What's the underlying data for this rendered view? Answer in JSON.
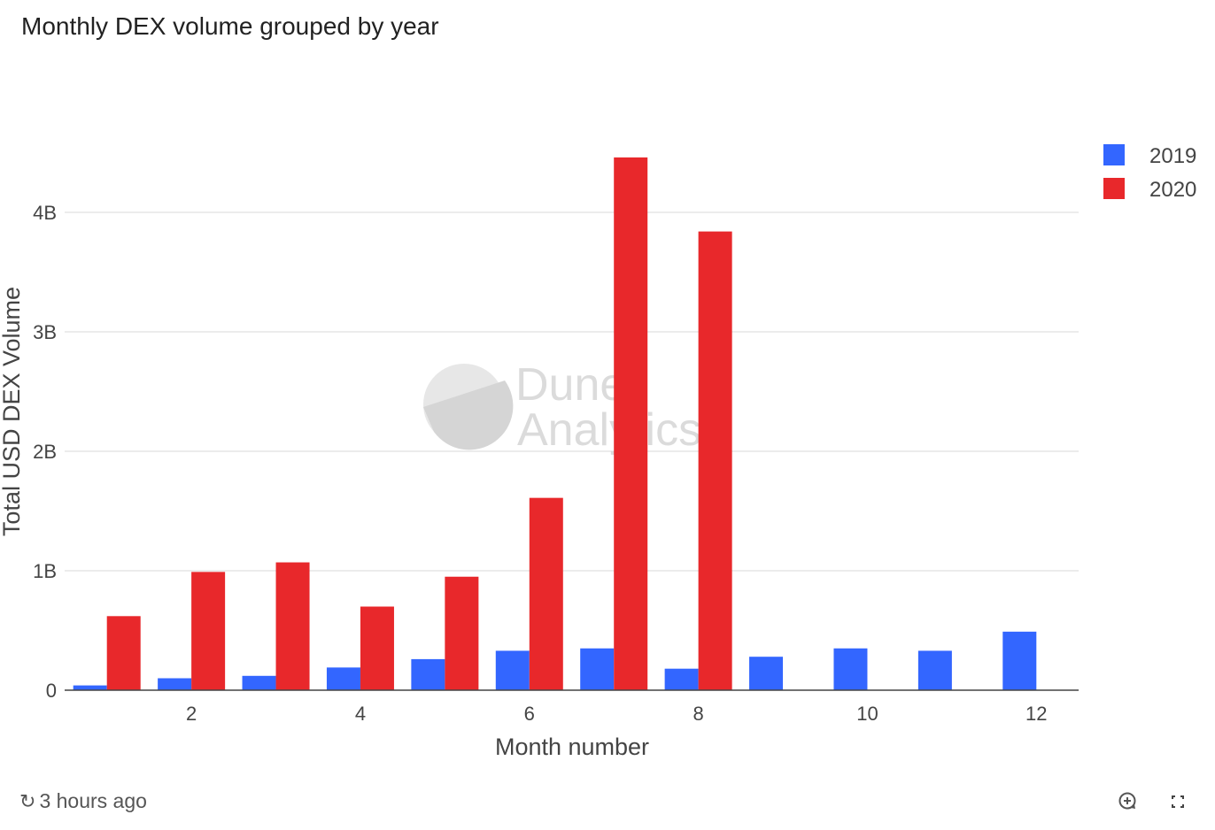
{
  "title": "Monthly DEX volume grouped by year",
  "chart_data": {
    "type": "bar",
    "title": "Monthly DEX volume grouped by year",
    "xlabel": "Month number",
    "ylabel": "Total USD DEX Volume",
    "x": [
      1,
      2,
      3,
      4,
      5,
      6,
      7,
      8,
      9,
      10,
      11,
      12
    ],
    "xticks": [
      "2",
      "4",
      "6",
      "8",
      "10",
      "12"
    ],
    "yticks": [
      "0",
      "1B",
      "2B",
      "3B",
      "4B"
    ],
    "ylim": [
      0,
      4.6
    ],
    "yunit": "B",
    "grid": true,
    "legend": "top-right",
    "series": [
      {
        "name": "2019",
        "color": "#3366ff",
        "values": [
          0.04,
          0.1,
          0.12,
          0.19,
          0.26,
          0.33,
          0.35,
          0.18,
          0.28,
          0.35,
          0.33,
          0.49
        ]
      },
      {
        "name": "2020",
        "color": "#e8282b",
        "values": [
          0.62,
          0.99,
          1.07,
          0.7,
          0.95,
          1.61,
          4.46,
          3.84,
          null,
          null,
          null,
          null
        ]
      }
    ]
  },
  "watermark": {
    "line1": "Dune",
    "line2": "Analytics"
  },
  "footer": {
    "updated": "3 hours ago",
    "refresh_icon": "refresh-icon",
    "zoom_icon": "zoom-in-icon",
    "fullscreen_icon": "fullscreen-icon"
  }
}
